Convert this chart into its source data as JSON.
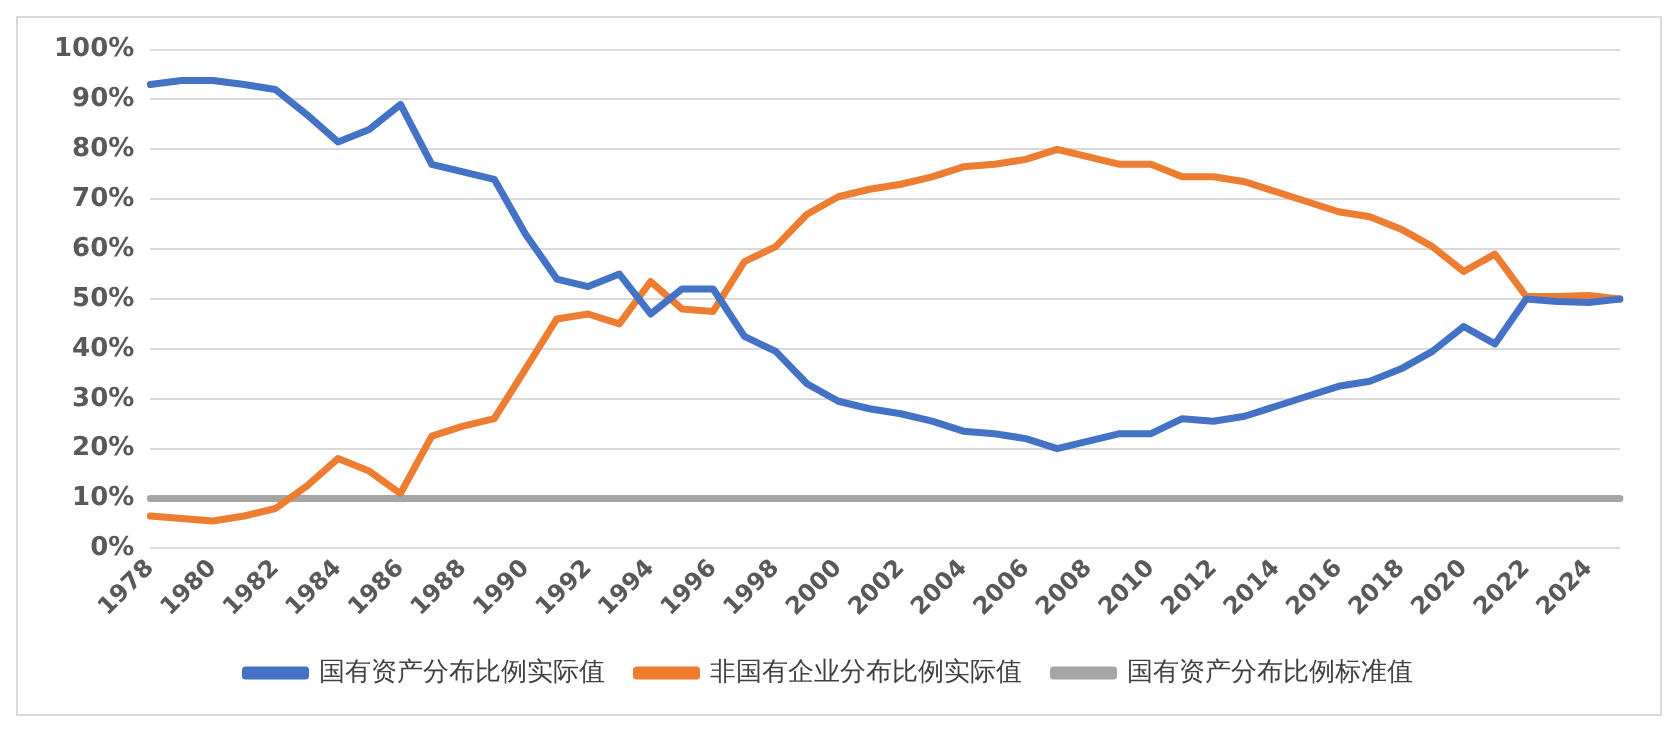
{
  "chart_data": {
    "type": "line",
    "categories": [
      "1978",
      null,
      "1980",
      null,
      "1982",
      null,
      "1984",
      null,
      "1986",
      null,
      "1988",
      null,
      "1990",
      null,
      "1992",
      null,
      "1994",
      null,
      "1996",
      null,
      "1998",
      null,
      "2000",
      null,
      "2002",
      null,
      "2004",
      null,
      "2006",
      null,
      "2008",
      null,
      "2010",
      null,
      "2012",
      null,
      "2014",
      null,
      "2016",
      null,
      "2018",
      null,
      "2020",
      null,
      "2022",
      null,
      "2024",
      null
    ],
    "series": [
      {
        "name": "国有资产分布比例实际值",
        "color": "#4472c4",
        "values": [
          93,
          93.8,
          93.8,
          93,
          92,
          87,
          81.5,
          84,
          89,
          77,
          75.5,
          74,
          63,
          54,
          52.5,
          55,
          47,
          52,
          52,
          42.5,
          39.5,
          33,
          29.5,
          28,
          27,
          25.5,
          23.5,
          23,
          22,
          20,
          21.5,
          23,
          23,
          26,
          25.5,
          26.5,
          28.5,
          30.5,
          32.5,
          33.5,
          36,
          39.5,
          44.5,
          41,
          50,
          49.5,
          49.3,
          50
        ]
      },
      {
        "name": "非国有企业分布比例实际值",
        "color": "#ed7d31",
        "values": [
          6.5,
          6,
          5.5,
          6.5,
          8,
          12.5,
          18,
          15.5,
          11,
          22.5,
          24.5,
          26,
          36,
          46,
          47,
          45,
          53.5,
          48,
          47.5,
          57.5,
          60.5,
          67,
          70.5,
          72,
          73,
          74.5,
          76.5,
          77,
          78,
          80,
          78.5,
          77,
          77,
          74.5,
          74.5,
          73.5,
          71.5,
          69.5,
          67.5,
          66.5,
          64,
          60.5,
          55.5,
          59,
          50.5,
          50.5,
          50.7,
          50
        ]
      },
      {
        "name": "国有资产分布比例标准值",
        "color": "#a5a5a5",
        "values": [
          10,
          10,
          10,
          10,
          10,
          10,
          10,
          10,
          10,
          10,
          10,
          10,
          10,
          10,
          10,
          10,
          10,
          10,
          10,
          10,
          10,
          10,
          10,
          10,
          10,
          10,
          10,
          10,
          10,
          10,
          10,
          10,
          10,
          10,
          10,
          10,
          10,
          10,
          10,
          10,
          10,
          10,
          10,
          10,
          10,
          10,
          10,
          10
        ]
      }
    ],
    "ylim": [
      0,
      100
    ],
    "yticks": [
      {
        "value": 0,
        "label": "0%"
      },
      {
        "value": 10,
        "label": "10%"
      },
      {
        "value": 20,
        "label": "20%"
      },
      {
        "value": 30,
        "label": "30%"
      },
      {
        "value": 40,
        "label": "40%"
      },
      {
        "value": 50,
        "label": "50%"
      },
      {
        "value": 60,
        "label": "60%"
      },
      {
        "value": 70,
        "label": "70%"
      },
      {
        "value": 80,
        "label": "80%"
      },
      {
        "value": 90,
        "label": "90%"
      },
      {
        "value": 100,
        "label": "100%"
      }
    ],
    "grid": "y",
    "legend": "bottom",
    "marker": "none",
    "line_style": "solid"
  }
}
